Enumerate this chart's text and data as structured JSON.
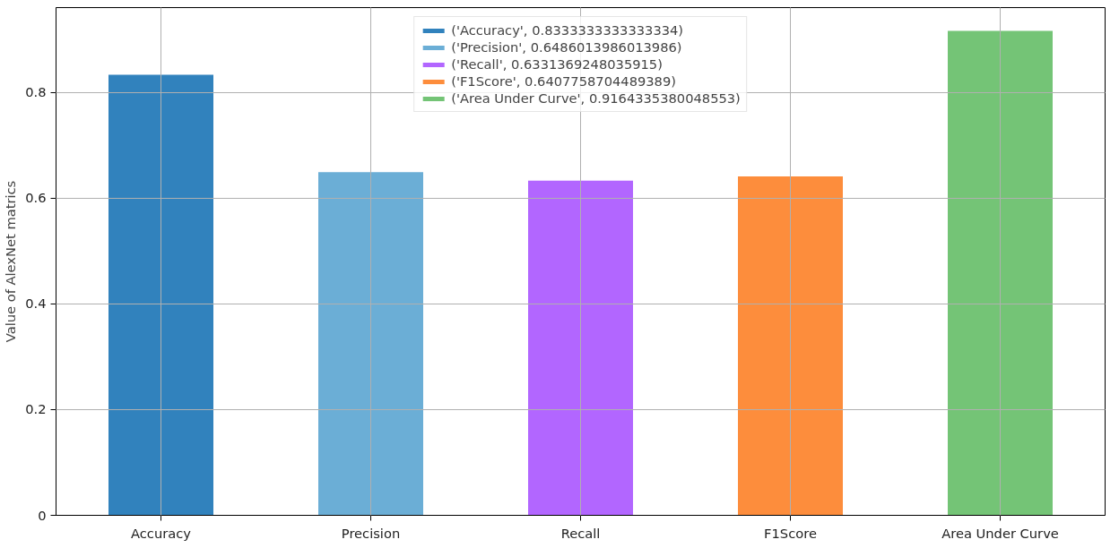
{
  "chart_data": {
    "type": "bar",
    "ylabel": "Value of AlexNet matrics",
    "categories": [
      "Accuracy",
      "Precision",
      "Recall",
      "F1Score",
      "Area Under Curve"
    ],
    "series": [
      {
        "name": "('Accuracy', 0.8333333333333334)",
        "color": "#3182bd",
        "values": [
          0.833,
          null,
          null,
          null,
          null
        ]
      },
      {
        "name": "('Precision', 0.6486013986013986)",
        "color": "#6baed6",
        "values": [
          null,
          0.649,
          null,
          null,
          null
        ]
      },
      {
        "name": "('Recall', 0.6331369248035915)",
        "color": "#b266ff",
        "values": [
          null,
          null,
          0.633,
          null,
          null
        ]
      },
      {
        "name": "('F1Score', 0.6407758704489389)",
        "color": "#fd8d3c",
        "values": [
          null,
          null,
          null,
          0.641,
          null
        ]
      },
      {
        "name": "('Area Under Curve', 0.9164335380048553)",
        "color": "#74c476",
        "values": [
          null,
          null,
          null,
          null,
          0.916
        ]
      }
    ],
    "ylim": [
      0,
      0.96
    ],
    "yticks": [
      0,
      {
        "value": 0.2,
        "label": "0.2"
      },
      {
        "value": 0.4,
        "label": "0.4"
      },
      {
        "value": 0.6,
        "label": "0.6"
      },
      {
        "value": 0.8,
        "label": "0.8"
      }
    ],
    "grid": true,
    "legend": "top"
  }
}
